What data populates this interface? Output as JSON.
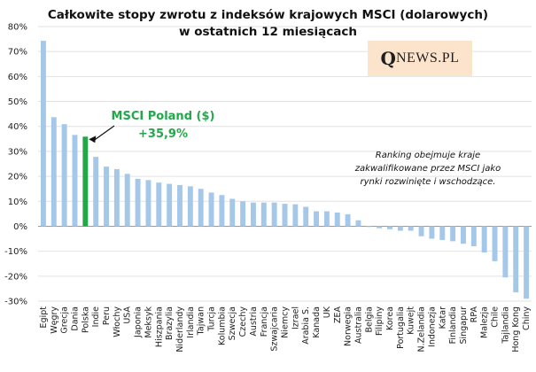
{
  "header": {
    "title_line1": "Całkowite stopy zwrotu z indeksów krajowych MSCI (dolarowych)",
    "title_line2": "w ostatnich 12 miesiącach"
  },
  "logo": {
    "q": "Q",
    "rest": "NEWS.PL"
  },
  "note": {
    "line1": "Ranking obejmuje kraje",
    "line2": "zakwalifikowane przez MSCI jako",
    "line3": "rynki  rozwinięte i wschodzące."
  },
  "callout": {
    "line1": "MSCI Poland ($)",
    "line2": "+35,9%"
  },
  "colors": {
    "bar": "#a6c8e8",
    "highlight": "#22a84a",
    "callout_text": "#22a84a",
    "logo_bg": "#fbe3cc"
  },
  "chart_data": {
    "type": "bar",
    "title": "Całkowite stopy zwrotu z indeksów krajowych MSCI (dolarowych) w ostatnich 12 miesiącach",
    "ylim": [
      -30,
      80
    ],
    "yticks": [
      80,
      70,
      60,
      50,
      40,
      30,
      20,
      10,
      0,
      -10,
      -20,
      -30
    ],
    "ytick_labels": [
      "80%",
      "70%",
      "60%",
      "50%",
      "40%",
      "30%",
      "20%",
      "10%",
      "0%",
      "-10%",
      "-20%",
      "-30%"
    ],
    "highlight_category": "Polska",
    "categories": [
      "Egipt",
      "Węgry",
      "Grecja",
      "Dania",
      "Polska",
      "Indie",
      "Peru",
      "Włochy",
      "USA",
      "Japonia",
      "Meksyk",
      "Hiszpania",
      "Brazylia",
      "Niderlandy",
      "Irlandia",
      "Tajwan",
      "Turcja",
      "Kolumbia",
      "Szwecja",
      "Czechy",
      "Austria",
      "Francja",
      "Szwajcaria",
      "Niemcy",
      "Izrael",
      "Arabia S.",
      "Kanada",
      "UK",
      "ZEA",
      "Norwegia",
      "Australia",
      "Belgia",
      "Filipiny",
      "Korea",
      "Portugalia",
      "Kuwejt",
      "N.Zelandia",
      "Indonezja",
      "Katar",
      "Finlandia",
      "Singapur",
      "RPA",
      "Malezja",
      "Chile",
      "Tajlandia",
      "Hong Kong",
      "Chiny"
    ],
    "values": [
      74.3,
      43.7,
      40.9,
      36.6,
      35.9,
      27.8,
      23.9,
      22.9,
      21.0,
      19.0,
      18.5,
      17.5,
      17.0,
      16.5,
      16.0,
      15.0,
      13.5,
      12.5,
      11.0,
      10.0,
      9.5,
      9.5,
      9.5,
      9.0,
      8.8,
      7.8,
      6.0,
      6.0,
      5.5,
      4.8,
      2.4,
      -0.3,
      -0.8,
      -1.2,
      -1.8,
      -1.8,
      -4.0,
      -5.0,
      -5.5,
      -6.0,
      -7.0,
      -8.0,
      -10.5,
      -14.0,
      -20.5,
      -26.5,
      -29.0
    ]
  }
}
